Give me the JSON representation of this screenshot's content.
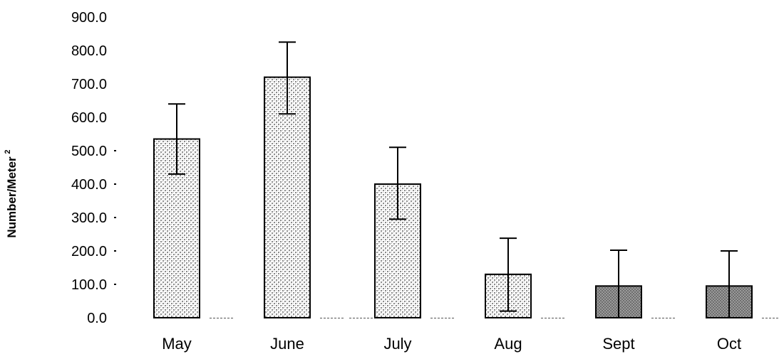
{
  "chart_data": {
    "type": "bar",
    "ylabel": "Number/Meter",
    "ylabel_superscript": "2",
    "ylim": [
      0,
      900
    ],
    "yticks": [
      "0.0",
      "100.0",
      "200.0",
      "300.0",
      "400.0",
      "500.0",
      "600.0",
      "700.0",
      "800.0",
      "900.0"
    ],
    "categories": [
      "May",
      "June",
      "July",
      "Aug",
      "Sept",
      "Oct"
    ],
    "values": [
      535,
      720,
      400,
      130,
      95,
      95
    ],
    "error_upper": [
      640,
      825,
      510,
      238,
      202,
      200
    ],
    "error_lower": [
      430,
      610,
      295,
      20,
      0,
      0
    ],
    "grid": false,
    "legend": "none",
    "colors": {
      "bar_outline": "#000000",
      "stipple": "#7a7a7a",
      "error_bar": "#000000"
    }
  }
}
